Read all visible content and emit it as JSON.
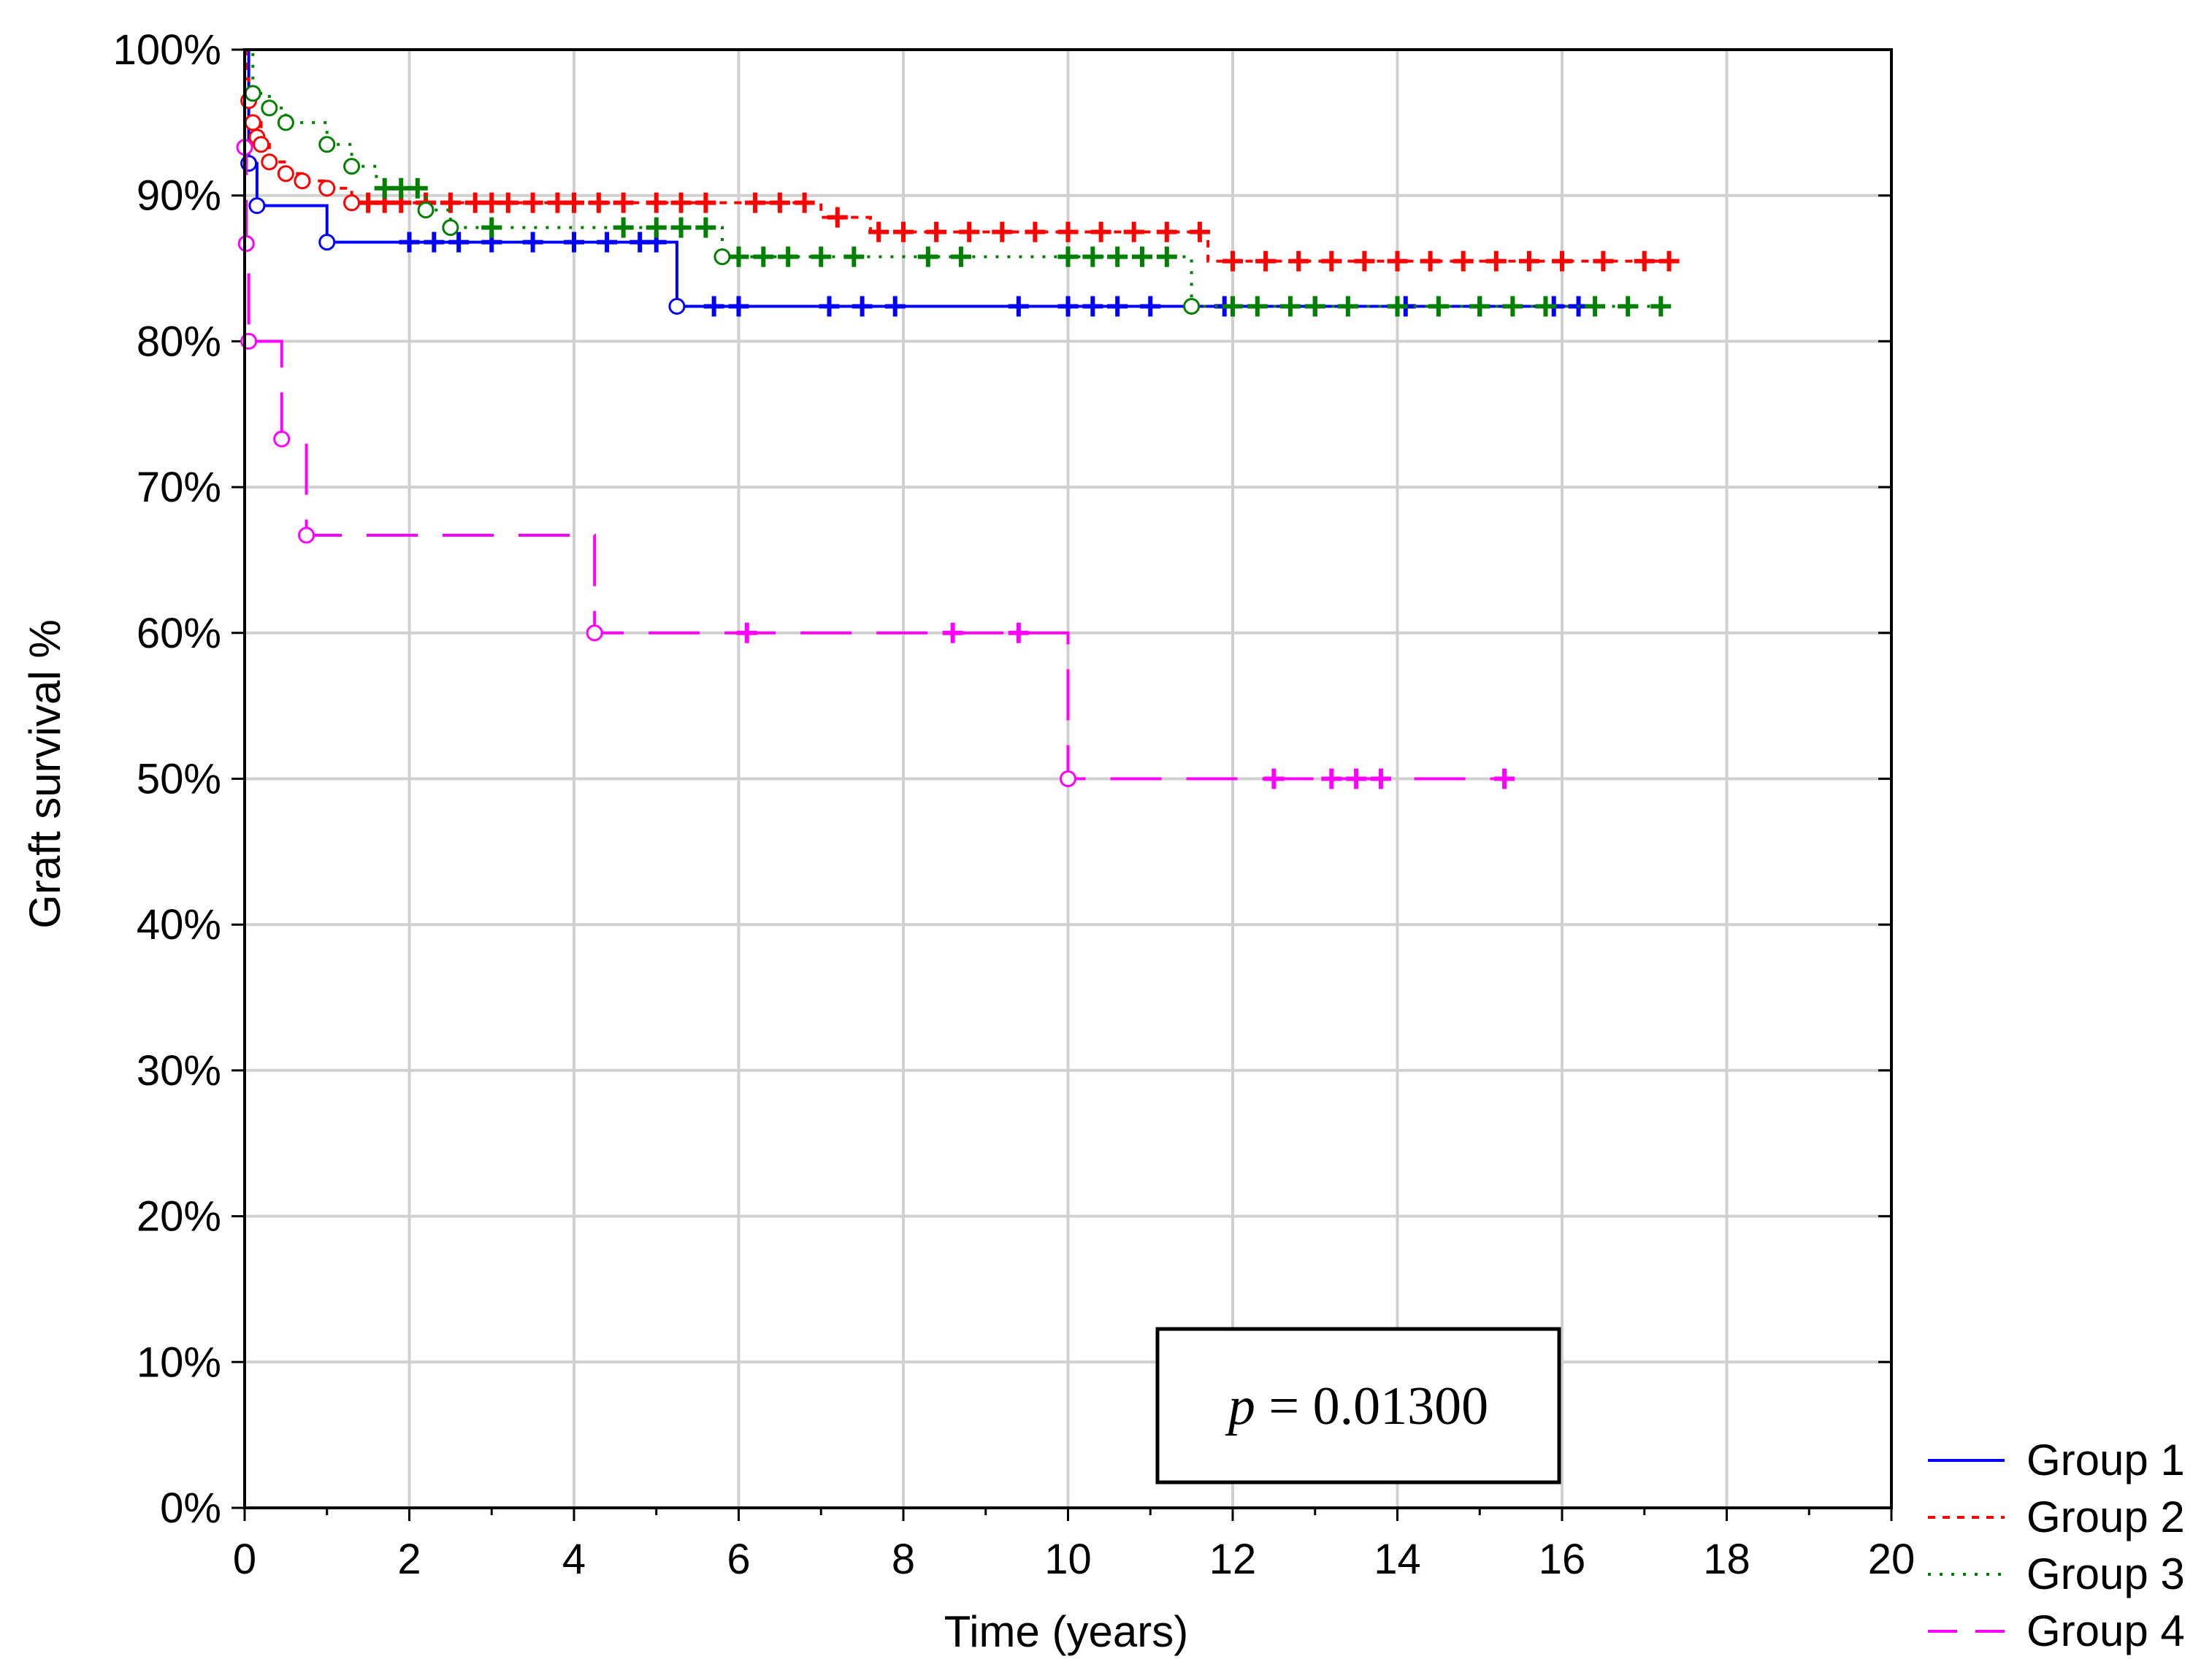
{
  "chart_data": {
    "type": "line",
    "subtype": "kaplan-meier",
    "xlabel": "Time (years)",
    "ylabel": "Graft survival %",
    "xlim": [
      0,
      20
    ],
    "ylim": [
      0,
      100
    ],
    "x_ticks": [
      "0",
      "2",
      "4",
      "6",
      "8",
      "10",
      "12",
      "14",
      "16",
      "18",
      "20"
    ],
    "y_ticks": [
      "0%",
      "10%",
      "20%",
      "30%",
      "40%",
      "50%",
      "60%",
      "70%",
      "80%",
      "90%",
      "100%"
    ],
    "grid": true,
    "legend_position": "bottom-right",
    "annotation": {
      "italic": "p",
      "rest": " = 0.01300"
    },
    "series": [
      {
        "name": "Group 1",
        "color": "#0000ff",
        "dash": "solid",
        "steps": [
          [
            0,
            100
          ],
          [
            0.05,
            92.2
          ],
          [
            0.15,
            89.3
          ],
          [
            1.0,
            86.8
          ],
          [
            5.25,
            82.4
          ],
          [
            16.3,
            82.4
          ]
        ],
        "events": [
          [
            0.05,
            92.2
          ],
          [
            0.15,
            89.3
          ],
          [
            1.0,
            86.8
          ],
          [
            5.25,
            82.4
          ]
        ],
        "censored": [
          2.0,
          2.3,
          2.6,
          3.0,
          3.5,
          4.0,
          4.4,
          4.8,
          5.0,
          5.7,
          6.0,
          7.1,
          7.5,
          7.9,
          9.4,
          10.0,
          10.3,
          10.6,
          11.0,
          11.9,
          13.0,
          14.1,
          15.0,
          15.9,
          16.2
        ]
      },
      {
        "name": "Group 2",
        "color": "#ff0000",
        "dash": "short",
        "steps": [
          [
            0,
            100
          ],
          [
            0.02,
            98
          ],
          [
            0.05,
            96.5
          ],
          [
            0.1,
            95
          ],
          [
            0.2,
            93.5
          ],
          [
            0.3,
            92.3
          ],
          [
            0.5,
            91.5
          ],
          [
            0.7,
            91
          ],
          [
            1.0,
            90.5
          ],
          [
            1.3,
            89.5
          ],
          [
            6.8,
            89.5
          ],
          [
            7.0,
            88.5
          ],
          [
            7.6,
            87.5
          ],
          [
            11.7,
            85.5
          ],
          [
            17.4,
            85.5
          ]
        ],
        "events": [
          [
            0.05,
            96.5
          ],
          [
            0.1,
            95
          ],
          [
            0.15,
            94
          ],
          [
            0.2,
            93.5
          ],
          [
            0.3,
            92.3
          ],
          [
            0.5,
            91.5
          ],
          [
            0.7,
            91
          ],
          [
            1.0,
            90.5
          ],
          [
            1.3,
            89.5
          ]
        ],
        "censored": [
          1.5,
          1.7,
          1.9,
          2.2,
          2.5,
          2.8,
          3.0,
          3.2,
          3.5,
          3.8,
          4.0,
          4.3,
          4.6,
          5.0,
          5.3,
          5.6,
          6.2,
          6.5,
          6.8,
          7.2,
          7.7,
          8.0,
          8.4,
          8.8,
          9.2,
          9.6,
          10.0,
          10.4,
          10.8,
          11.2,
          11.6,
          12.0,
          12.4,
          12.8,
          13.2,
          13.6,
          14.0,
          14.4,
          14.8,
          15.2,
          15.6,
          16.0,
          16.5,
          17.0,
          17.3
        ]
      },
      {
        "name": "Group 3",
        "color": "#008000",
        "dash": "dotted",
        "steps": [
          [
            0,
            100
          ],
          [
            0.1,
            97
          ],
          [
            0.3,
            96
          ],
          [
            0.5,
            95
          ],
          [
            1.0,
            93.5
          ],
          [
            1.3,
            92
          ],
          [
            1.6,
            90.5
          ],
          [
            2.2,
            89
          ],
          [
            2.5,
            87.8
          ],
          [
            5.0,
            87.8
          ],
          [
            5.8,
            85.8
          ],
          [
            11.5,
            82.4
          ],
          [
            17.3,
            82.4
          ]
        ],
        "events": [
          [
            0.1,
            97
          ],
          [
            0.3,
            96
          ],
          [
            0.5,
            95
          ],
          [
            1.0,
            93.5
          ],
          [
            1.3,
            92
          ],
          [
            2.2,
            89
          ],
          [
            2.5,
            87.8
          ],
          [
            5.8,
            85.8
          ],
          [
            11.5,
            82.4
          ]
        ],
        "censored": [
          1.7,
          1.9,
          2.1,
          3.0,
          4.6,
          5.0,
          5.3,
          5.6,
          6.0,
          6.3,
          6.6,
          7.0,
          7.4,
          8.3,
          8.7,
          10.0,
          10.3,
          10.6,
          10.9,
          11.2,
          12.0,
          12.3,
          12.7,
          13.0,
          13.4,
          14.0,
          14.5,
          15.0,
          15.4,
          15.8,
          16.4,
          16.8,
          17.2
        ]
      },
      {
        "name": "Group 4",
        "color": "#ff00ff",
        "dash": "long",
        "steps": [
          [
            0,
            100
          ],
          [
            0.0,
            93.3
          ],
          [
            0.02,
            86.7
          ],
          [
            0.05,
            80.0
          ],
          [
            0.45,
            73.3
          ],
          [
            0.75,
            66.7
          ],
          [
            4.25,
            60.0
          ],
          [
            10.0,
            50.0
          ],
          [
            15.3,
            50.0
          ]
        ],
        "events": [
          [
            0.0,
            93.3
          ],
          [
            0.02,
            86.7
          ],
          [
            0.05,
            80.0
          ],
          [
            0.45,
            73.3
          ],
          [
            0.75,
            66.7
          ],
          [
            4.25,
            60.0
          ],
          [
            10.0,
            50.0
          ]
        ],
        "censored": [
          6.1,
          8.6,
          9.4,
          12.5,
          13.2,
          13.5,
          13.8,
          15.3
        ]
      }
    ]
  }
}
